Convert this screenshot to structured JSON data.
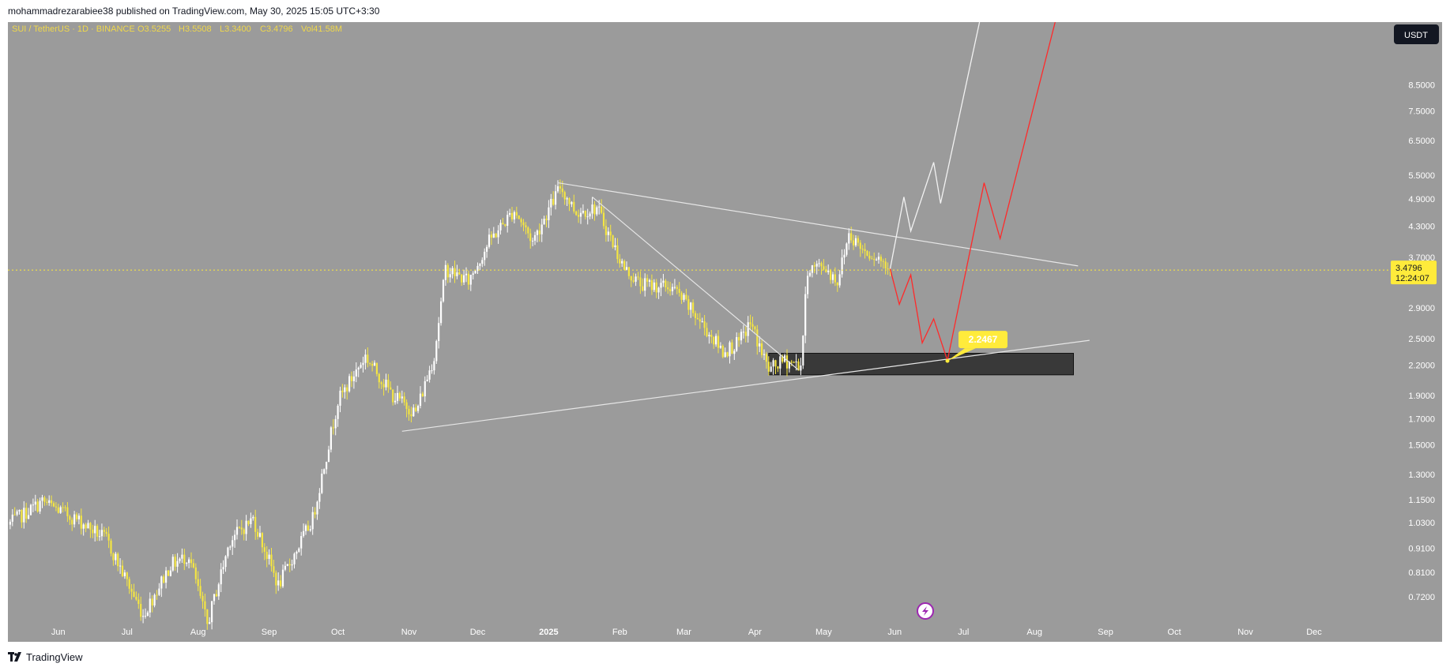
{
  "header": {
    "published_text": "mohammadrezarabiee38 published on TradingView.com, May 30, 2025 15:05 UTC+3:30"
  },
  "footer": {
    "brand": "TradingView"
  },
  "legend": {
    "symbol": "SUI / TetherUS · 1D · BINANCE",
    "open": "O3.5255",
    "high": "H3.5508",
    "low": "L3.3400",
    "close": "C3.4796",
    "volume": "Vol41.58M"
  },
  "currency_badge": "USDT",
  "price_label": {
    "value": "3.4796",
    "countdown": "12:24:07"
  },
  "annotation_label": "2.2467",
  "colors": {
    "up": "#ffffff",
    "down": "#f5e642",
    "accent": "#ffeb3b",
    "forecast_red": "#ff2a2a",
    "background": "#9b9b9b"
  },
  "icons": [
    "tradingview-logo-icon",
    "lightning-icon"
  ],
  "chart_data": {
    "type": "candlestick",
    "y_scale": "log",
    "x_ticks": [
      "Jun",
      "Jul",
      "Aug",
      "Sep",
      "Oct",
      "Nov",
      "Dec",
      "2025",
      "Feb",
      "Mar",
      "Apr",
      "May",
      "Jun",
      "Jul",
      "Aug",
      "Sep",
      "Oct",
      "Nov",
      "Dec"
    ],
    "y_ticks": [
      0.72,
      0.81,
      0.91,
      1.03,
      1.15,
      1.3,
      1.5,
      1.7,
      1.9,
      2.2,
      2.5,
      2.9,
      3.7,
      4.3,
      4.9,
      5.5,
      6.5,
      7.5,
      8.5
    ],
    "y_tick_labels": [
      "0.7200",
      "0.8100",
      "0.9100",
      "1.0300",
      "1.1500",
      "1.3000",
      "1.5000",
      "1.7000",
      "1.9000",
      "2.2000",
      "2.5000",
      "2.9000",
      "3.7000",
      "4.3000",
      "4.9000",
      "5.5000",
      "6.5000",
      "7.5000",
      "8.5000"
    ],
    "ylim": [
      0.65,
      11.5
    ],
    "xlim": [
      "2024-05-10",
      "2025-12-31"
    ],
    "last_price": 3.4796,
    "key_points": [
      {
        "date": "2024-05-10",
        "price": 1.02
      },
      {
        "date": "2024-05-25",
        "price": 1.14
      },
      {
        "date": "2024-06-10",
        "price": 1.04
      },
      {
        "date": "2024-06-22",
        "price": 0.95
      },
      {
        "date": "2024-07-08",
        "price": 0.66
      },
      {
        "date": "2024-07-20",
        "price": 0.84
      },
      {
        "date": "2024-07-28",
        "price": 0.88
      },
      {
        "date": "2024-08-05",
        "price": 0.63
      },
      {
        "date": "2024-08-15",
        "price": 0.95
      },
      {
        "date": "2024-08-25",
        "price": 1.05
      },
      {
        "date": "2024-09-05",
        "price": 0.76
      },
      {
        "date": "2024-09-20",
        "price": 1.05
      },
      {
        "date": "2024-10-01",
        "price": 1.85
      },
      {
        "date": "2024-10-13",
        "price": 2.3
      },
      {
        "date": "2024-10-25",
        "price": 1.9
      },
      {
        "date": "2024-11-04",
        "price": 1.75
      },
      {
        "date": "2024-11-12",
        "price": 2.3
      },
      {
        "date": "2024-11-17",
        "price": 3.5
      },
      {
        "date": "2024-11-27",
        "price": 3.3
      },
      {
        "date": "2024-12-06",
        "price": 4.0
      },
      {
        "date": "2024-12-17",
        "price": 4.65
      },
      {
        "date": "2024-12-25",
        "price": 4.0
      },
      {
        "date": "2025-01-06",
        "price": 5.2
      },
      {
        "date": "2025-01-13",
        "price": 4.6
      },
      {
        "date": "2025-01-22",
        "price": 4.7
      },
      {
        "date": "2025-02-03",
        "price": 3.5
      },
      {
        "date": "2025-02-10",
        "price": 3.25
      },
      {
        "date": "2025-02-24",
        "price": 3.2
      },
      {
        "date": "2025-03-06",
        "price": 2.8
      },
      {
        "date": "2025-03-18",
        "price": 2.35
      },
      {
        "date": "2025-03-25",
        "price": 2.45
      },
      {
        "date": "2025-03-30",
        "price": 2.7
      },
      {
        "date": "2025-04-07",
        "price": 2.15
      },
      {
        "date": "2025-04-14",
        "price": 2.25
      },
      {
        "date": "2025-04-21",
        "price": 2.2
      },
      {
        "date": "2025-04-24",
        "price": 3.5
      },
      {
        "date": "2025-05-01",
        "price": 3.55
      },
      {
        "date": "2025-05-07",
        "price": 3.3
      },
      {
        "date": "2025-05-12",
        "price": 4.15
      },
      {
        "date": "2025-05-18",
        "price": 3.85
      },
      {
        "date": "2025-05-25",
        "price": 3.7
      },
      {
        "date": "2025-05-30",
        "price": 3.4796
      }
    ],
    "trendlines": [
      {
        "color": "white",
        "points": [
          {
            "date": "2025-01-05",
            "price": 5.3
          },
          {
            "date": "2025-08-20",
            "price": 3.55
          }
        ]
      },
      {
        "color": "white",
        "points": [
          {
            "date": "2025-01-20",
            "price": 4.95
          },
          {
            "date": "2025-04-20",
            "price": 2.15
          }
        ]
      },
      {
        "color": "white",
        "points": [
          {
            "date": "2024-10-29",
            "price": 1.6
          },
          {
            "date": "2025-08-25",
            "price": 2.48
          }
        ]
      }
    ],
    "zone": {
      "start": "2025-04-07",
      "end": "2025-08-18",
      "top": 2.33,
      "bottom": 2.1
    },
    "forecasts": [
      {
        "color": "white",
        "points": [
          {
            "date": "2025-05-30",
            "price": 3.5
          },
          {
            "date": "2025-06-05",
            "price": 4.95
          },
          {
            "date": "2025-06-08",
            "price": 4.2
          },
          {
            "date": "2025-06-18",
            "price": 5.85
          },
          {
            "date": "2025-06-21",
            "price": 4.8
          },
          {
            "date": "2025-07-08",
            "price": 11.5
          }
        ]
      },
      {
        "color": "red",
        "points": [
          {
            "date": "2025-05-30",
            "price": 3.5
          },
          {
            "date": "2025-06-03",
            "price": 2.95
          },
          {
            "date": "2025-06-08",
            "price": 3.4
          },
          {
            "date": "2025-06-13",
            "price": 2.45
          },
          {
            "date": "2025-06-18",
            "price": 2.75
          },
          {
            "date": "2025-06-24",
            "price": 2.25
          },
          {
            "date": "2025-07-10",
            "price": 5.3
          },
          {
            "date": "2025-07-17",
            "price": 4.05
          },
          {
            "date": "2025-08-10",
            "price": 11.5
          }
        ]
      }
    ],
    "annotation": {
      "date": "2025-06-24",
      "price": 2.2467,
      "text": "2.2467"
    }
  }
}
